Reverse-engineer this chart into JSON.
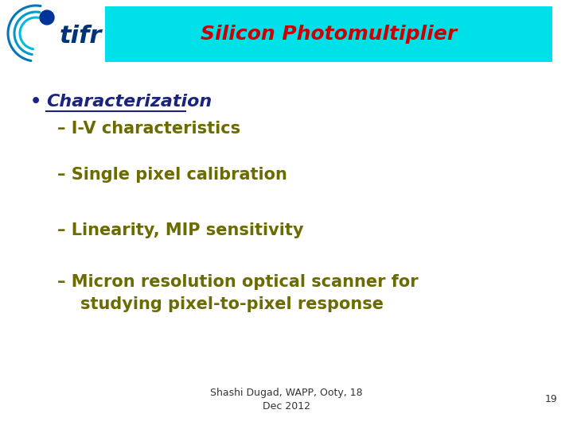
{
  "title": "Silicon Photomultiplier",
  "title_bg_color": "#00E0E8",
  "title_text_color": "#CC0000",
  "title_fontsize": 18,
  "bullet_label": "•",
  "bullet_text": "Characterization",
  "bullet_color": "#1a237e",
  "bullet_fontsize": 16,
  "items": [
    "– I-V characteristics",
    "– Single pixel calibration",
    "– Linearity, MIP sensitivity",
    "– Micron resolution optical scanner for\n    studying pixel-to-pixel response"
  ],
  "item_color": "#6b6b00",
  "item_fontsize": 15,
  "footer_text": "Shashi Dugad, WAPP, Ooty, 18\nDec 2012",
  "page_number": "19",
  "footer_fontsize": 9,
  "bg_color": "#ffffff",
  "tifr_color": "#005baa",
  "tifr_dark": "#003377"
}
